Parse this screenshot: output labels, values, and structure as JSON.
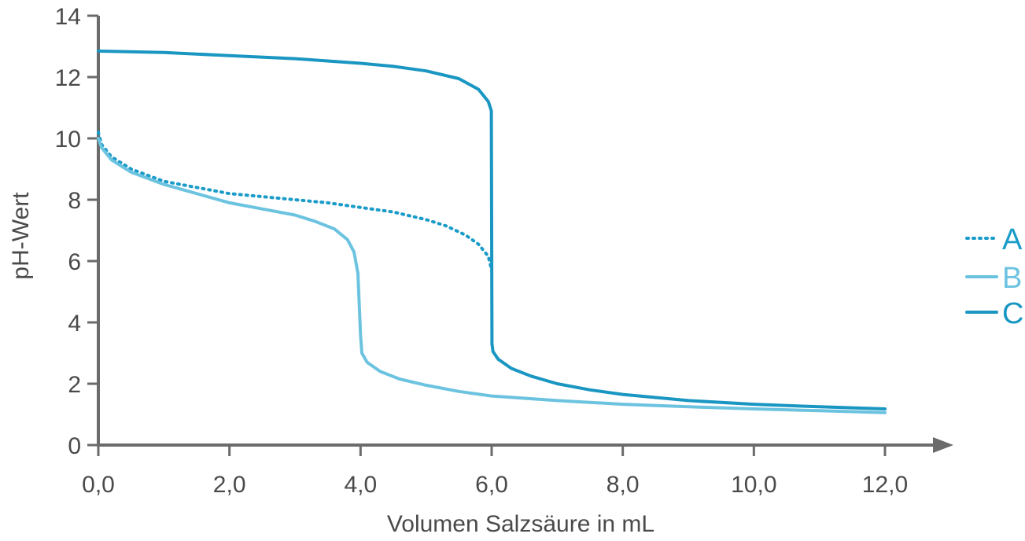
{
  "chart_data": {
    "type": "line",
    "xlabel": "Volumen Salzsäure in mL",
    "ylabel": "pH-Wert",
    "xlim": [
      0,
      12.8
    ],
    "ylim": [
      0,
      14
    ],
    "x_ticks": [
      0,
      2,
      4,
      6,
      8,
      10,
      12
    ],
    "x_tick_labels": [
      "0,0",
      "2,0",
      "4,0",
      "6,0",
      "8,0",
      "10,0",
      "12,0"
    ],
    "y_ticks": [
      0,
      2,
      4,
      6,
      8,
      10,
      12,
      14
    ],
    "y_tick_labels": [
      "0",
      "2",
      "4",
      "6",
      "8",
      "10",
      "12",
      "14"
    ],
    "grid": false,
    "legend_position": "right",
    "series": [
      {
        "name": "A",
        "color": "#1a9bc9",
        "style": "dotted",
        "x": [
          0,
          0.05,
          0.2,
          0.5,
          1.0,
          1.5,
          2.0,
          2.5,
          3.0,
          3.5,
          4.0,
          4.5,
          5.0,
          5.3,
          5.6,
          5.8,
          5.95,
          6.0
        ],
        "y": [
          10.2,
          9.8,
          9.4,
          9.0,
          8.6,
          8.4,
          8.2,
          8.1,
          8.0,
          7.9,
          7.75,
          7.6,
          7.35,
          7.15,
          6.85,
          6.55,
          6.15,
          5.7
        ]
      },
      {
        "name": "B",
        "color": "#6cc3e0",
        "style": "solid",
        "x": [
          0,
          0.05,
          0.2,
          0.5,
          1.0,
          1.5,
          2.0,
          2.5,
          3.0,
          3.3,
          3.6,
          3.8,
          3.9,
          3.96,
          4.0,
          4.02,
          4.1,
          4.3,
          4.6,
          5.0,
          5.5,
          6.0,
          7.0,
          8.0,
          9.0,
          10.0,
          11.0,
          12.0
        ],
        "y": [
          10.0,
          9.7,
          9.3,
          8.9,
          8.5,
          8.2,
          7.9,
          7.7,
          7.5,
          7.3,
          7.05,
          6.7,
          6.3,
          5.6,
          3.6,
          3.0,
          2.7,
          2.4,
          2.15,
          1.95,
          1.75,
          1.6,
          1.45,
          1.33,
          1.25,
          1.18,
          1.12,
          1.06
        ]
      },
      {
        "name": "C",
        "color": "#1a96c2",
        "style": "solid",
        "x": [
          0,
          1.0,
          2.0,
          3.0,
          4.0,
          4.5,
          5.0,
          5.5,
          5.8,
          5.95,
          5.995,
          6.005,
          6.02,
          6.1,
          6.3,
          6.6,
          7.0,
          7.5,
          8.0,
          9.0,
          10.0,
          11.0,
          12.0
        ],
        "y": [
          12.85,
          12.8,
          12.7,
          12.6,
          12.45,
          12.35,
          12.2,
          11.95,
          11.6,
          11.2,
          10.9,
          3.3,
          3.05,
          2.8,
          2.5,
          2.25,
          2.0,
          1.8,
          1.65,
          1.45,
          1.33,
          1.25,
          1.18
        ]
      }
    ]
  }
}
